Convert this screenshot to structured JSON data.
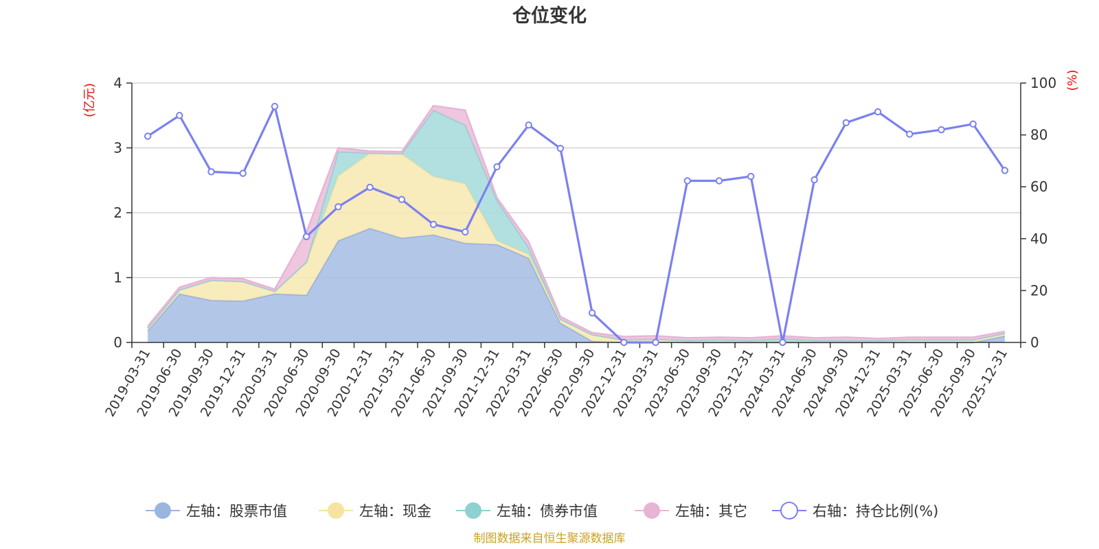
{
  "chart_data": {
    "type": "area",
    "title": "仓位变化",
    "left_axis": {
      "unit": "(亿元)",
      "ylim": [
        0,
        4
      ],
      "ticks": [
        "0",
        "1",
        "2",
        "3",
        "4"
      ]
    },
    "right_axis": {
      "unit": "(%)",
      "ylim": [
        0,
        100
      ],
      "ticks": [
        "0",
        "20",
        "40",
        "60",
        "80",
        "100"
      ]
    },
    "categories": [
      "2019-03-31",
      "2019-06-30",
      "2019-09-30",
      "2019-12-31",
      "2020-03-31",
      "2020-06-30",
      "2020-09-30",
      "2020-12-31",
      "2021-03-31",
      "2021-06-30",
      "2021-09-30",
      "2021-12-31",
      "2022-03-31",
      "2022-06-30",
      "2022-09-30",
      "2022-12-31",
      "2023-03-31",
      "2023-06-30",
      "2023-09-30",
      "2023-12-31",
      "2024-03-31",
      "2024-06-30",
      "2024-09-30",
      "2024-12-31",
      "2025-03-31",
      "2025-06-30",
      "2025-09-30",
      "2025-12-31"
    ],
    "x_tick_labels": [
      "2019-03-31",
      "2019-06-30",
      "2019-09-30",
      "2019-12-31",
      "2020-03-31",
      "2020-06-30",
      "2020-09-30",
      "2020-12-31",
      "2021-03-31",
      "2021-06-30",
      "2021-09-30",
      "2021-12-31",
      "2022-03-31",
      "2022-06-30",
      "2022-09-30",
      "2022-12-31",
      "2023-03-31",
      "2023-06-30",
      "2023-09-30",
      "2023-12-31",
      "2024-03-31",
      "2024-06-30",
      "2024-09-30",
      "2024-12-31",
      "2025-03-31",
      "2025-06-30",
      "2025-09-30",
      "2025-12-31"
    ],
    "stacked_series": [
      {
        "name": "左轴：股票市值",
        "axis": "left",
        "color": "#a4bde4",
        "line_color": "#93abd9",
        "values": [
          0.18,
          0.75,
          0.65,
          0.64,
          0.75,
          0.73,
          1.57,
          1.76,
          1.61,
          1.66,
          1.53,
          1.51,
          1.3,
          0.3,
          0.02,
          0.0,
          0.01,
          0.0,
          0.0,
          0.0,
          0.0,
          0.0,
          0.0,
          0.0,
          0.0,
          0.0,
          0.0,
          0.1
        ]
      },
      {
        "name": "左轴：现金",
        "axis": "left",
        "color": "#f7e8b0",
        "line_color": "#f4e29e",
        "values": [
          0.04,
          0.06,
          0.31,
          0.3,
          0.04,
          0.51,
          1.0,
          1.16,
          1.3,
          0.9,
          0.92,
          0.06,
          0.06,
          0.06,
          0.1,
          0.04,
          0.04,
          0.03,
          0.04,
          0.03,
          0.01,
          0.03,
          0.03,
          0.03,
          0.04,
          0.04,
          0.04,
          0.04
        ]
      },
      {
        "name": "左轴：债券市值",
        "axis": "left",
        "color": "#a5dbdc",
        "line_color": "#8fd0d1",
        "values": [
          0.0,
          0.0,
          0.0,
          0.0,
          0.0,
          0.0,
          0.37,
          0.0,
          0.0,
          1.02,
          0.9,
          0.62,
          0.1,
          0.0,
          0.0,
          0.0,
          0.0,
          0.0,
          0.0,
          0.0,
          0.05,
          0.0,
          0.0,
          0.0,
          0.0,
          0.0,
          0.0,
          0.0
        ]
      },
      {
        "name": "左轴：其它",
        "axis": "left",
        "color": "#ebbdd9",
        "line_color": "#e8b4d6",
        "values": [
          0.03,
          0.04,
          0.04,
          0.04,
          0.03,
          0.46,
          0.06,
          0.03,
          0.03,
          0.07,
          0.23,
          0.04,
          0.09,
          0.04,
          0.03,
          0.05,
          0.05,
          0.04,
          0.04,
          0.04,
          0.04,
          0.04,
          0.05,
          0.03,
          0.04,
          0.04,
          0.04,
          0.03
        ]
      }
    ],
    "line_series": {
      "name": "右轴：持仓比例(%)",
      "axis": "right",
      "color": "#7b80f0",
      "values": [
        79.5,
        87.5,
        65.8,
        65.2,
        91.0,
        40.8,
        52.3,
        59.8,
        55.1,
        45.5,
        42.6,
        67.7,
        83.8,
        74.8,
        11.4,
        0.0,
        0.0,
        62.3,
        62.3,
        64.0,
        0.0,
        62.7,
        84.7,
        88.9,
        80.3,
        82.0,
        84.2,
        66.3
      ]
    },
    "grid": true,
    "legend_position": "bottom-center"
  },
  "legend": [
    {
      "label": "左轴：股票市值",
      "color": "#9ab5e0",
      "type": "area"
    },
    {
      "label": "左轴：现金",
      "color": "#f7e3a0",
      "type": "area"
    },
    {
      "label": "左轴：债券市值",
      "color": "#8fd0d1",
      "type": "area"
    },
    {
      "label": "左轴：其它",
      "color": "#e8b4d6",
      "type": "area"
    },
    {
      "label": "右轴：持仓比例(%)",
      "color": "#7b80f0",
      "type": "line"
    }
  ],
  "source": "制图数据来自恒生聚源数据库"
}
